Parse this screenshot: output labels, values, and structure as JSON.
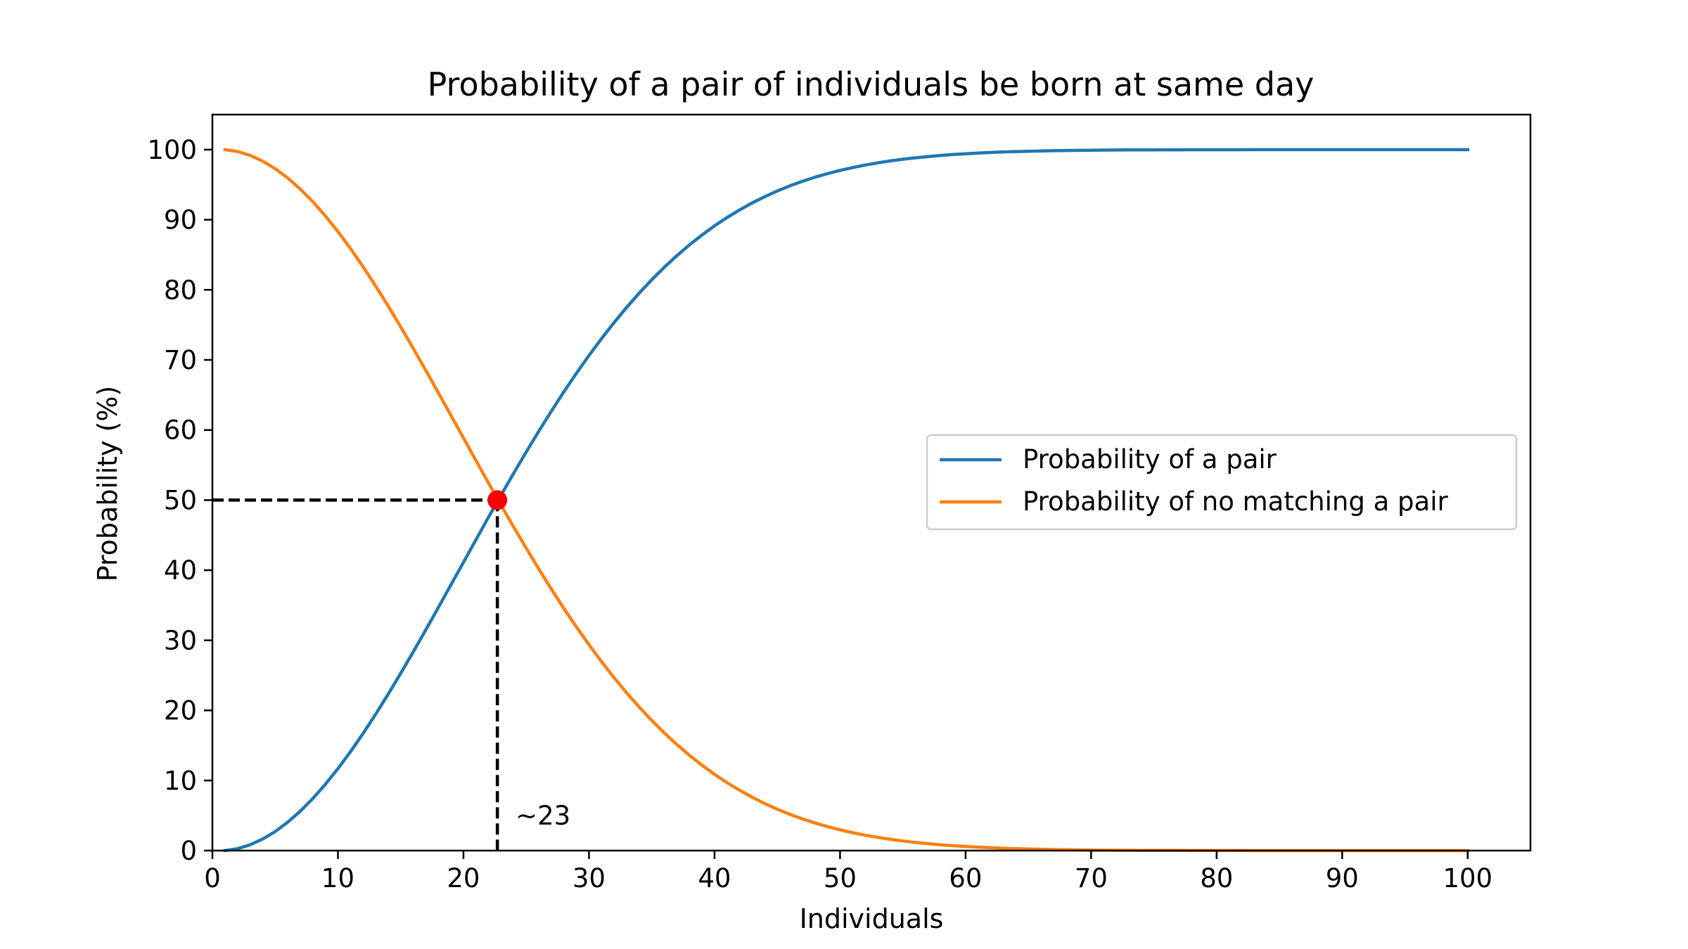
{
  "chart_data": {
    "type": "line",
    "title": "Probability of a pair of individuals be born at same day",
    "xlabel": "Individuals",
    "ylabel": "Probability (%)",
    "xlim": [
      0,
      105
    ],
    "ylim": [
      0,
      105
    ],
    "xticks": [
      0,
      10,
      20,
      30,
      40,
      50,
      60,
      70,
      80,
      90,
      100
    ],
    "yticks": [
      0,
      10,
      20,
      30,
      40,
      50,
      60,
      70,
      80,
      90,
      100
    ],
    "grid": false,
    "legend_position": "center-right",
    "x": [
      1,
      2,
      3,
      4,
      5,
      6,
      7,
      8,
      9,
      10,
      11,
      12,
      13,
      14,
      15,
      16,
      17,
      18,
      19,
      20,
      21,
      22,
      23,
      24,
      25,
      26,
      27,
      28,
      29,
      30,
      31,
      32,
      33,
      34,
      35,
      36,
      37,
      38,
      39,
      40,
      41,
      42,
      43,
      44,
      45,
      46,
      47,
      48,
      49,
      50,
      51,
      52,
      53,
      54,
      55,
      56,
      57,
      58,
      59,
      60,
      61,
      62,
      63,
      64,
      65,
      66,
      67,
      68,
      69,
      70,
      71,
      72,
      73,
      74,
      75,
      76,
      77,
      78,
      79,
      80,
      81,
      82,
      83,
      84,
      85,
      86,
      87,
      88,
      89,
      90,
      91,
      92,
      93,
      94,
      95,
      96,
      97,
      98,
      99,
      100
    ],
    "series": [
      {
        "name": "Probability of a pair",
        "color": "#1f77b4",
        "values": [
          0.0,
          0.27,
          0.82,
          1.64,
          2.71,
          4.05,
          5.62,
          7.43,
          9.46,
          11.69,
          14.11,
          16.7,
          19.44,
          22.31,
          25.29,
          28.36,
          31.5,
          34.69,
          37.91,
          41.14,
          44.37,
          47.57,
          50.73,
          53.83,
          56.87,
          59.82,
          62.69,
          65.45,
          68.1,
          70.63,
          73.05,
          75.33,
          77.5,
          79.53,
          81.44,
          83.22,
          84.87,
          86.41,
          87.82,
          89.12,
          90.32,
          91.4,
          92.39,
          93.29,
          94.1,
          94.83,
          95.48,
          96.06,
          96.58,
          97.04,
          97.44,
          97.8,
          98.11,
          98.39,
          98.63,
          98.83,
          99.01,
          99.17,
          99.3,
          99.41,
          99.51,
          99.59,
          99.67,
          99.72,
          99.77,
          99.81,
          99.85,
          99.88,
          99.9,
          99.92,
          99.94,
          99.95,
          99.96,
          99.97,
          99.97,
          99.98,
          99.98,
          99.99,
          99.99,
          99.99,
          99.99,
          99.99,
          100.0,
          100.0,
          100.0,
          100.0,
          100.0,
          100.0,
          100.0,
          100.0,
          100.0,
          100.0,
          100.0,
          100.0,
          100.0,
          100.0,
          100.0,
          100.0,
          100.0,
          100.0
        ]
      },
      {
        "name": "Probability of no matching a pair",
        "color": "#ff7f0e",
        "values": [
          100.0,
          99.73,
          99.18,
          98.36,
          97.29,
          95.95,
          94.38,
          92.57,
          90.54,
          88.31,
          85.89,
          83.3,
          80.56,
          77.69,
          74.71,
          71.64,
          68.5,
          65.31,
          62.09,
          58.86,
          55.63,
          52.43,
          49.27,
          46.17,
          43.13,
          40.18,
          37.31,
          34.55,
          31.9,
          29.37,
          26.95,
          24.67,
          22.5,
          20.47,
          18.56,
          16.78,
          15.13,
          13.59,
          12.18,
          10.88,
          9.68,
          8.6,
          7.61,
          6.71,
          5.9,
          5.17,
          4.52,
          3.94,
          3.42,
          2.96,
          2.56,
          2.2,
          1.89,
          1.61,
          1.37,
          1.17,
          0.99,
          0.83,
          0.7,
          0.59,
          0.49,
          0.41,
          0.33,
          0.28,
          0.23,
          0.19,
          0.15,
          0.12,
          0.1,
          0.08,
          0.06,
          0.05,
          0.04,
          0.03,
          0.03,
          0.02,
          0.02,
          0.01,
          0.01,
          0.01,
          0.01,
          0.01,
          0.0,
          0.0,
          0.0,
          0.0,
          0.0,
          0.0,
          0.0,
          0.0,
          0.0,
          0.0,
          0.0,
          0.0,
          0.0,
          0.0,
          0.0,
          0.0,
          0.0,
          0.0
        ]
      }
    ],
    "intersection": {
      "x": 22.7,
      "y": 50,
      "color": "#ff0000"
    },
    "annotation": "~23"
  }
}
